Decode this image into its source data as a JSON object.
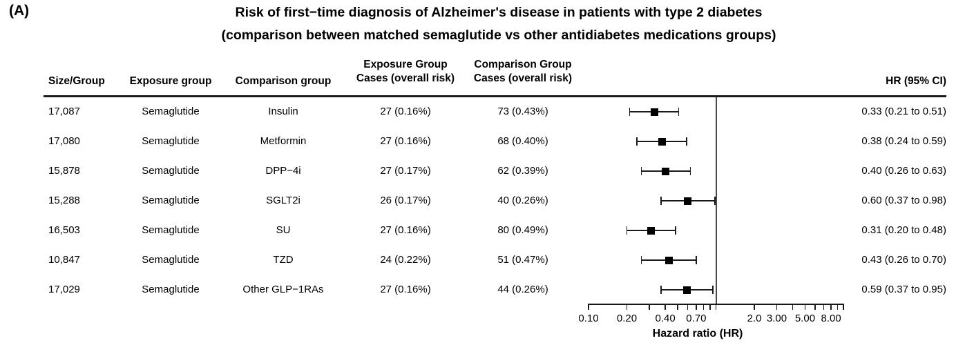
{
  "panel_label": "(A)",
  "title": {
    "line1": "Risk of first−time diagnosis of Alzheimer's disease in patients with type 2 diabetes",
    "line2": "(comparison between matched semaglutide vs other antidiabetes medications groups)"
  },
  "colors": {
    "background": "#ffffff",
    "text": "#000000",
    "marker": "#000000",
    "whisker": "#1a1a1a",
    "reference_line": "#4a4a4a",
    "rule": "#1a1a1a"
  },
  "table": {
    "headers": {
      "size_group": "Size/Group",
      "exposure_group": "Exposure group",
      "comparison_group": "Comparison group",
      "exposure_cases_line1": "Exposure Group",
      "exposure_cases_line2": "Cases (overall risk)",
      "comparison_cases_line1": "Comparison Group",
      "comparison_cases_line2": "Cases (overall risk)",
      "hr_ci": "HR (95% CI)"
    },
    "rows": [
      {
        "size": "17,087",
        "exposure": "Semaglutide",
        "comparison": "Insulin",
        "exposure_cases": "27 (0.16%)",
        "comparison_cases": "73 (0.43%)",
        "hr_text": "0.33 (0.21 to 0.51)"
      },
      {
        "size": "17,080",
        "exposure": "Semaglutide",
        "comparison": "Metformin",
        "exposure_cases": "27 (0.16%)",
        "comparison_cases": "68 (0.40%)",
        "hr_text": "0.38 (0.24 to 0.59)"
      },
      {
        "size": "15,878",
        "exposure": "Semaglutide",
        "comparison": "DPP−4i",
        "exposure_cases": "27 (0.17%)",
        "comparison_cases": "62 (0.39%)",
        "hr_text": "0.40 (0.26 to 0.63)"
      },
      {
        "size": "15,288",
        "exposure": "Semaglutide",
        "comparison": "SGLT2i",
        "exposure_cases": "26 (0.17%)",
        "comparison_cases": "40 (0.26%)",
        "hr_text": "0.60 (0.37 to 0.98)"
      },
      {
        "size": "16,503",
        "exposure": "Semaglutide",
        "comparison": "SU",
        "exposure_cases": "27 (0.16%)",
        "comparison_cases": "80 (0.49%)",
        "hr_text": "0.31 (0.20 to 0.48)"
      },
      {
        "size": "10,847",
        "exposure": "Semaglutide",
        "comparison": "TZD",
        "exposure_cases": "24 (0.22%)",
        "comparison_cases": "51 (0.47%)",
        "hr_text": "0.43 (0.26 to 0.70)"
      },
      {
        "size": "17,029",
        "exposure": "Semaglutide",
        "comparison": "Other GLP−1RAs",
        "exposure_cases": "27 (0.16%)",
        "comparison_cases": "44 (0.26%)",
        "hr_text": "0.59 (0.37 to 0.95)"
      }
    ]
  },
  "chart_data": {
    "type": "forest",
    "title": "Risk of first−time diagnosis of Alzheimer's disease in patients with type 2 diabetes (comparison between matched semaglutide vs other antidiabetes medications groups)",
    "x_scale": "log10",
    "xlim": [
      0.1,
      10
    ],
    "reference_line": 1.0,
    "xlabel": "Hazard ratio (HR)",
    "x_ticks_labeled": [
      {
        "value": 0.1,
        "label": "0.10"
      },
      {
        "value": 0.2,
        "label": "0.20"
      },
      {
        "value": 0.4,
        "label": "0.40"
      },
      {
        "value": 0.7,
        "label": "0.70"
      },
      {
        "value": 2.0,
        "label": "2.0"
      },
      {
        "value": 3.0,
        "label": "3.00"
      },
      {
        "value": 5.0,
        "label": "5.00"
      },
      {
        "value": 8.0,
        "label": "8.00"
      }
    ],
    "x_ticks_minor": [
      0.1,
      0.2,
      0.3,
      0.4,
      0.5,
      0.6,
      0.7,
      0.8,
      0.9,
      1,
      2,
      3,
      4,
      5,
      6,
      7,
      8,
      9,
      10
    ],
    "points": [
      {
        "comparison": "Insulin",
        "hr": 0.33,
        "ci_low": 0.21,
        "ci_high": 0.51
      },
      {
        "comparison": "Metformin",
        "hr": 0.38,
        "ci_low": 0.24,
        "ci_high": 0.59
      },
      {
        "comparison": "DPP−4i",
        "hr": 0.4,
        "ci_low": 0.26,
        "ci_high": 0.63
      },
      {
        "comparison": "SGLT2i",
        "hr": 0.6,
        "ci_low": 0.37,
        "ci_high": 0.98
      },
      {
        "comparison": "SU",
        "hr": 0.31,
        "ci_low": 0.2,
        "ci_high": 0.48
      },
      {
        "comparison": "TZD",
        "hr": 0.43,
        "ci_low": 0.26,
        "ci_high": 0.7
      },
      {
        "comparison": "Other GLP−1RAs",
        "hr": 0.59,
        "ci_low": 0.37,
        "ci_high": 0.95
      }
    ]
  }
}
